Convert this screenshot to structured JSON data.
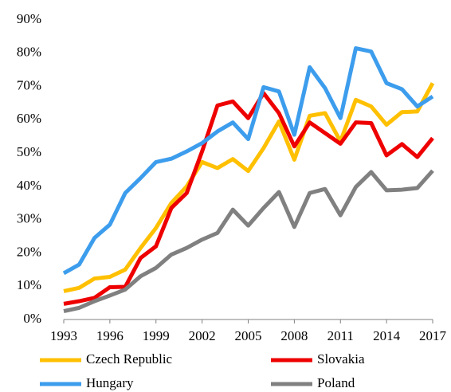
{
  "chart_data": {
    "type": "line",
    "x": [
      1993,
      1994,
      1995,
      1996,
      1997,
      1998,
      1999,
      2000,
      2001,
      2002,
      2003,
      2004,
      2005,
      2006,
      2007,
      2008,
      2009,
      2010,
      2011,
      2012,
      2013,
      2014,
      2015,
      2016,
      2017
    ],
    "series": [
      {
        "name": "Czech Republic",
        "color": "#ffc000",
        "values": [
          8.5,
          9.5,
          12.3,
          12.8,
          15,
          21.5,
          27.5,
          35,
          40,
          47.3,
          45.5,
          48.2,
          44.6,
          51.5,
          59.5,
          48,
          61.2,
          62,
          53.5,
          66,
          64,
          58.5,
          62.3,
          62.5,
          71
        ]
      },
      {
        "name": "Slovakia",
        "color": "#ee0000",
        "values": [
          4.7,
          5.5,
          6.5,
          9.7,
          9.8,
          18.5,
          22,
          33.5,
          38,
          50.5,
          64.3,
          65.5,
          60.5,
          68,
          62,
          52,
          59.2,
          56,
          52.8,
          59.2,
          59,
          49.3,
          52.7,
          48.8,
          54.5
        ]
      },
      {
        "name": "Hungary",
        "color": "#3d9ded",
        "values": [
          13.9,
          16.5,
          24.5,
          28.5,
          38,
          42.5,
          47.3,
          48.3,
          50.5,
          53,
          56.5,
          59.2,
          54.2,
          69.8,
          68.5,
          55.5,
          75.8,
          69.5,
          60.5,
          81.5,
          80.5,
          71,
          69.2,
          64,
          67
        ]
      },
      {
        "name": "Poland",
        "color": "#808080",
        "values": [
          2.5,
          3.5,
          5.5,
          7.2,
          9,
          13,
          15.5,
          19.5,
          21.5,
          24,
          26,
          33,
          28.2,
          33.5,
          38.3,
          27.8,
          38,
          39.2,
          31.3,
          39.8,
          44.3,
          38.8,
          39,
          39.5,
          44.7
        ]
      }
    ],
    "xlim": [
      1993,
      2017
    ],
    "xticks": [
      1993,
      1996,
      1999,
      2002,
      2005,
      2008,
      2011,
      2014,
      2017
    ],
    "ylim": [
      0,
      90
    ],
    "yticks": [
      {
        "value": 0,
        "label": "0%"
      },
      {
        "value": 10,
        "label": "10%"
      },
      {
        "value": 20,
        "label": "20%"
      },
      {
        "value": 30,
        "label": "30%"
      },
      {
        "value": 40,
        "label": "40%"
      },
      {
        "value": 50,
        "label": "50%"
      },
      {
        "value": 60,
        "label": "60%"
      },
      {
        "value": 70,
        "label": "70%"
      },
      {
        "value": 80,
        "label": "80%"
      },
      {
        "value": 90,
        "label": "90%"
      }
    ],
    "grid": false,
    "legend": "bottom"
  }
}
